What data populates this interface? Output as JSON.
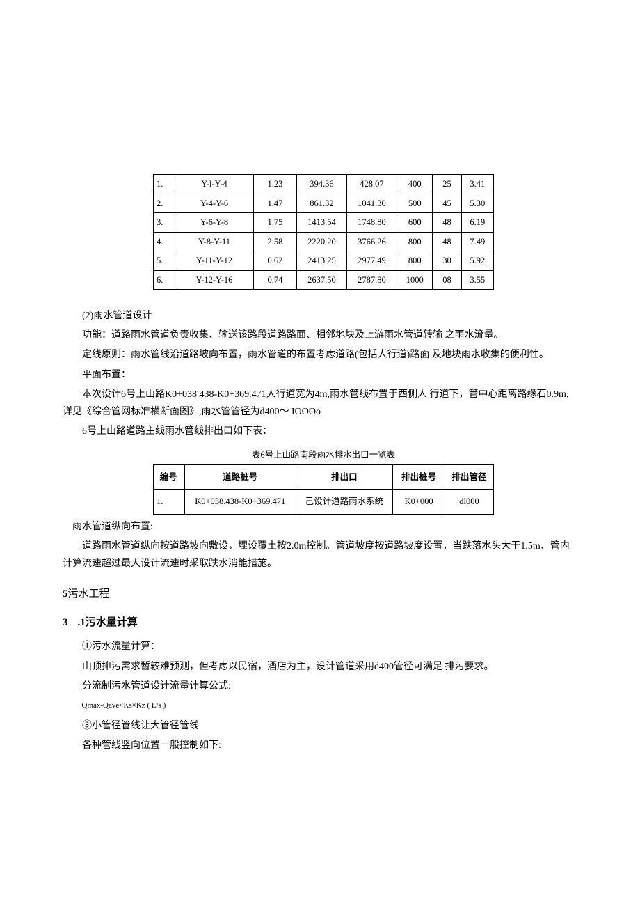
{
  "table1": {
    "rows": [
      [
        "1.",
        "Y-l-Y-4",
        "1.23",
        "394.36",
        "428.07",
        "400",
        "25",
        "3.41"
      ],
      [
        "2.",
        "Y-4-Y-6",
        "1.47",
        "861.32",
        "1041.30",
        "500",
        "45",
        "5.30"
      ],
      [
        "3.",
        "Y-6-Y-8",
        "1.75",
        "1413.54",
        "1748.80",
        "600",
        "48",
        "6.19"
      ],
      [
        "4.",
        "Y-8-Y-11",
        "2.58",
        "2220.20",
        "3766.26",
        "800",
        "48",
        "7.49"
      ],
      [
        "5.",
        "Y-11-Y-12",
        "0.62",
        "2413.25",
        "2977.49",
        "800",
        "30",
        "5.92"
      ],
      [
        "6.",
        "Y-12-Y-16",
        "0.74",
        "2637.50",
        "2787.80",
        "1000",
        "08",
        "3.55"
      ]
    ]
  },
  "para1": "(2)雨水管道设计",
  "para2": "功能：道路雨水管道负责收集、输送该路段道路路面、相邻地块及上游雨水管道转输 之雨水流量。",
  "para3": "定线原则：雨水管线沿道路坡向布置，雨水管道的布置考虑道路(包括人行道)路面  及地块雨水收集的便利性。",
  "para4": "平面布置：",
  "para5": "本次设计6号上山路K0+038.438-K0+369.471人行道宽为4m,雨水管线布置于西侧人 行道下，管中心距离路缘石0.9m,详见《综合管网标准横断面图》,雨水管管径为d400～ IOOOo",
  "para6": "6号上山路道路主线雨水管线排出口如下表：",
  "table2_caption": "表6号上山路南段雨水排水出口一览表",
  "table2": {
    "headers": [
      "编号",
      "道路桩号",
      "排出口",
      "排出桩号",
      "排出管径"
    ],
    "rows": [
      [
        "1.",
        "K0+038.438-K0+369.471",
        "己设计道路雨水系统",
        "K0+000",
        "dl000"
      ]
    ]
  },
  "para7": "雨水管道纵向布置:",
  "para8": "道路雨水管道纵向按道路坡向敷设，埋设覆土按2.0m控制。管道坡度按道路坡度设置，当跌落水头大于1.5m、管内计算流速超过最大设计流速时采取跌水消能措施。",
  "section5": "污水工程",
  "section5_num": "5",
  "subsection": ".1污水量计算",
  "subsection_num": "3",
  "para9": "①污水流量计算：",
  "para10": "山顶排污需求暂较难预测，但考虑以民宿，酒店为主，设计管道采用d400管径可满足 排污要求。",
  "para11": "分流制污水管道设计流量计算公式:",
  "formula": "Qmax-Qave×Ks×Kz ( L/s )",
  "para12": "③小管径管线让大管径管线",
  "para13": "各种管线竖向位置一般控制如下:"
}
